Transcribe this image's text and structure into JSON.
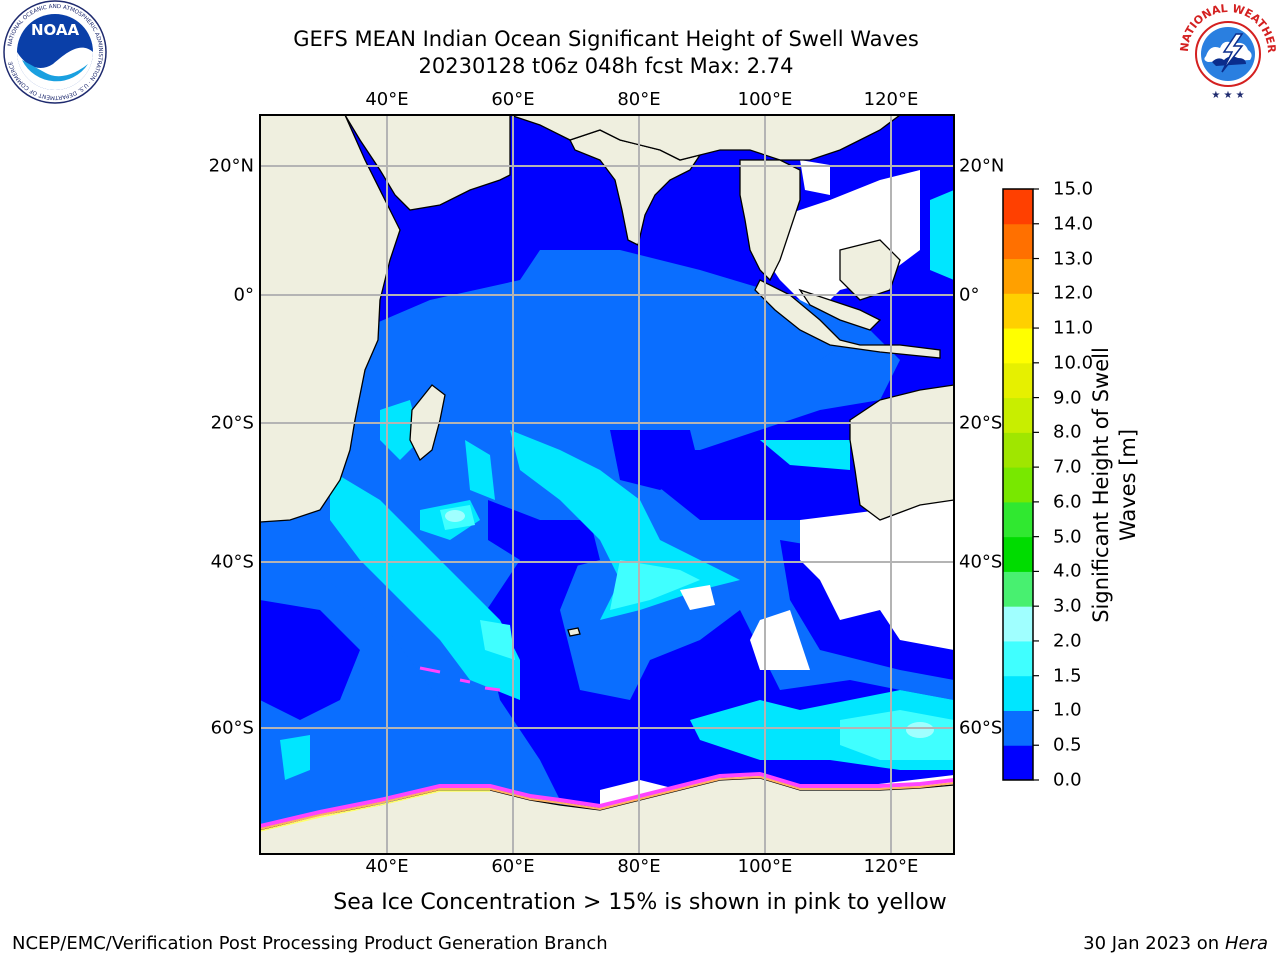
{
  "title_line1": "GEFS MEAN Indian Ocean Significant Height of Swell Waves",
  "title_line2": "20230128 t06z 048h fcst   Max: 2.74",
  "map": {
    "lon_ticks": [
      "40°E",
      "60°E",
      "80°E",
      "100°E",
      "120°E"
    ],
    "lat_ticks": [
      "20°N",
      "0°",
      "20°S",
      "40°S",
      "60°S"
    ],
    "colors": {
      "land": "#efefdf",
      "coast": "#000000",
      "grid": "#b4b4b4",
      "no_data": "#ffffff",
      "ice_edge": [
        "#ff44ff",
        "#ffb060",
        "#ffff66"
      ]
    }
  },
  "colorbar": {
    "title_line1": "Significant Height of Swell",
    "title_line2": "Waves [m]",
    "labels": [
      "0.0",
      "0.5",
      "1.0",
      "1.5",
      "2.0",
      "3.0",
      "4.0",
      "5.0",
      "6.0",
      "7.0",
      "8.0",
      "9.0",
      "10.0",
      "11.0",
      "12.0",
      "13.0",
      "14.0",
      "15.0"
    ],
    "colors": [
      "#0000ff",
      "#0a6eff",
      "#00e6ff",
      "#40ffff",
      "#a0ffff",
      "#48f070",
      "#00dc00",
      "#30e830",
      "#78e800",
      "#a0e600",
      "#c8ee00",
      "#e6f000",
      "#ffff00",
      "#ffd000",
      "#ffa000",
      "#ff7000",
      "#ff4000",
      "#ff0000"
    ]
  },
  "footnote": "Sea Ice Concentration > 15% is shown in pink to yellow",
  "credit_left": "NCEP/EMC/Verification Post Processing Product Generation Branch",
  "credit_right_prefix": "30 Jan 2023 on ",
  "credit_right_italic": "Hera",
  "logos": {
    "noaa": {
      "text": "NOAA",
      "ring_text": "NATIONAL OCEANIC AND ATMOSPHERIC ADMINISTRATION · U.S. DEPARTMENT OF COMMERCE"
    },
    "nws": {
      "ring_text": "NATIONAL WEATHER SERVICE"
    }
  }
}
